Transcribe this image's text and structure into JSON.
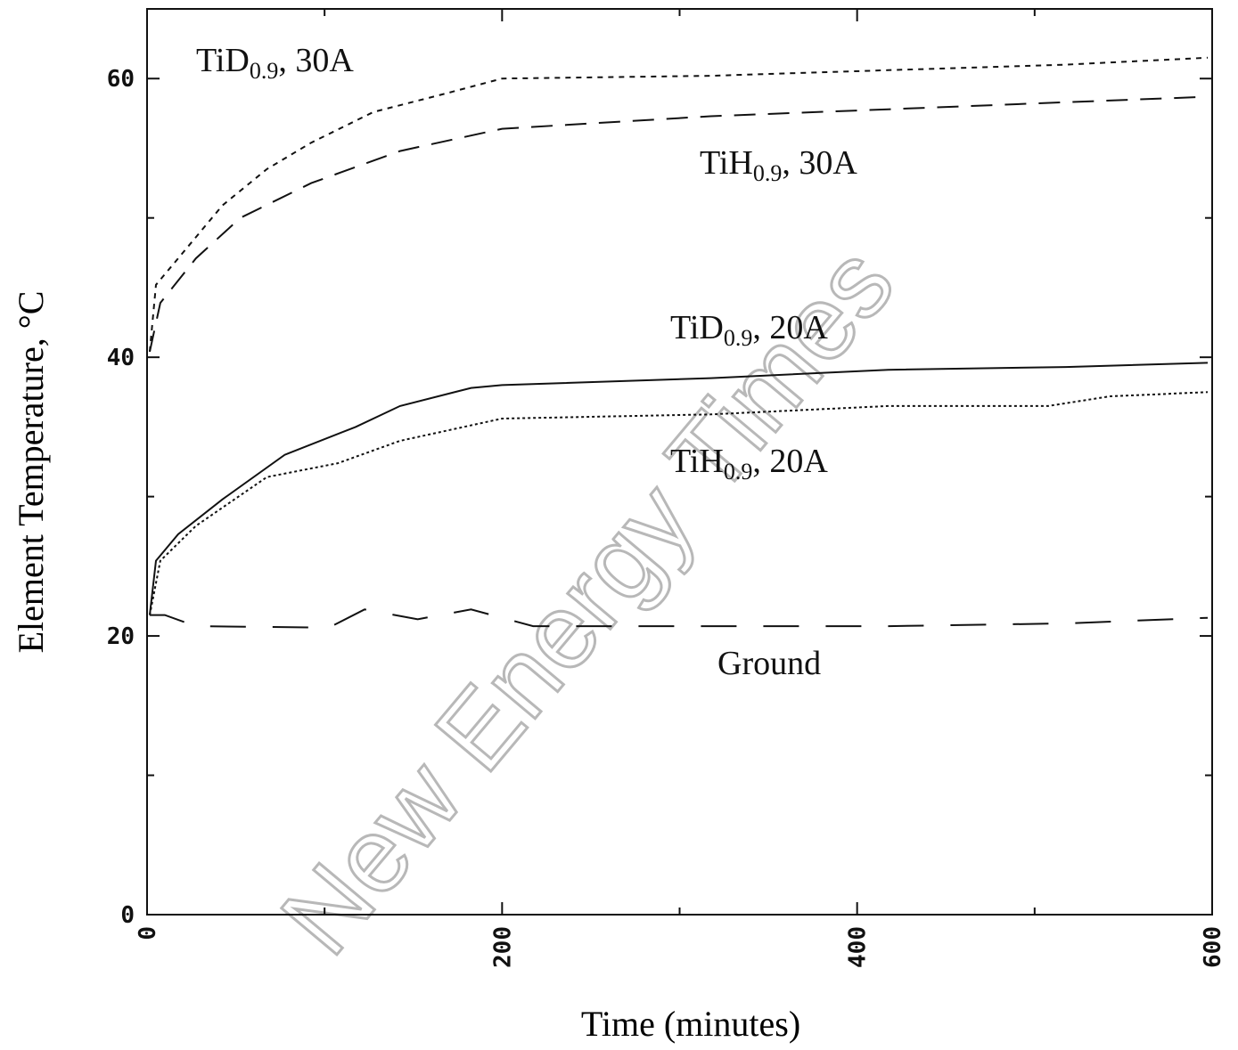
{
  "chart_data": {
    "type": "line",
    "xlabel": "Time (minutes)",
    "ylabel": "Element Temperature, °C",
    "xlim": [
      0,
      600
    ],
    "ylim": [
      0,
      65
    ],
    "xticks": [
      0,
      200,
      400,
      600
    ],
    "xminorticks": [
      100,
      300,
      500
    ],
    "yticks": [
      0,
      20,
      40,
      60
    ],
    "yminorticks": [
      10,
      30,
      50
    ],
    "color": "#111111",
    "series": [
      {
        "dash": "6,6",
        "x": [
          1.5,
          5,
          17.5,
          42.5,
          67.5,
          92.5,
          127.5,
          167.5,
          200,
          317.5,
          417.5,
          517.5,
          597.5
        ],
        "y": [
          40.4,
          45.2,
          47.1,
          50.9,
          53.5,
          55.4,
          57.6,
          58.9,
          60,
          60.2,
          60.6,
          61,
          61.5
        ]
      },
      {
        "dash": "24,14",
        "x": [
          1.5,
          7.5,
          27.5,
          52.5,
          92.5,
          142.5,
          200,
          317.5,
          417.5,
          517.5,
          597.5
        ],
        "y": [
          40.4,
          43.9,
          47.1,
          50,
          52.5,
          54.8,
          56.4,
          57.3,
          57.8,
          58.3,
          58.7
        ]
      },
      {
        "dash": "none",
        "x": [
          1.5,
          5,
          17.5,
          42.5,
          77.5,
          117.5,
          142.5,
          182.5,
          200,
          317.5,
          417.5,
          517.5,
          597.5
        ],
        "y": [
          21.5,
          25.4,
          27.3,
          29.8,
          33,
          35,
          36.5,
          37.8,
          38,
          38.5,
          39.1,
          39.3,
          39.6
        ]
      },
      {
        "dash": "3,3",
        "x": [
          1.5,
          7.5,
          27.5,
          67.5,
          107.5,
          142.5,
          200,
          317.5,
          417.5,
          507.5,
          542.5,
          597.5
        ],
        "y": [
          21.5,
          25.4,
          27.9,
          31.4,
          32.4,
          34,
          35.6,
          35.9,
          36.5,
          36.5,
          37.2,
          37.5
        ]
      },
      {
        "dash": "40,30",
        "x": [
          1.5,
          10,
          27.5,
          102.5,
          122.5,
          152.5,
          182.5,
          217.5,
          417.5,
          517.5,
          597.5
        ],
        "y": [
          21.5,
          21.5,
          20.7,
          20.6,
          21.9,
          21.2,
          21.9,
          20.7,
          20.7,
          20.9,
          21.3
        ]
      }
    ],
    "annotations": [
      {
        "base": "TiD",
        "sub": "0.9",
        "rest": ", 30A"
      },
      {
        "base": "TiH",
        "sub": "0.9",
        "rest": ", 30A"
      },
      {
        "base": "TiD",
        "sub": "0.9",
        "rest": ", 20A"
      },
      {
        "base": "TiH",
        "sub": "0.9",
        "rest": ", 20A"
      },
      {
        "base": "Ground"
      }
    ],
    "watermark": "New Energy Times"
  }
}
